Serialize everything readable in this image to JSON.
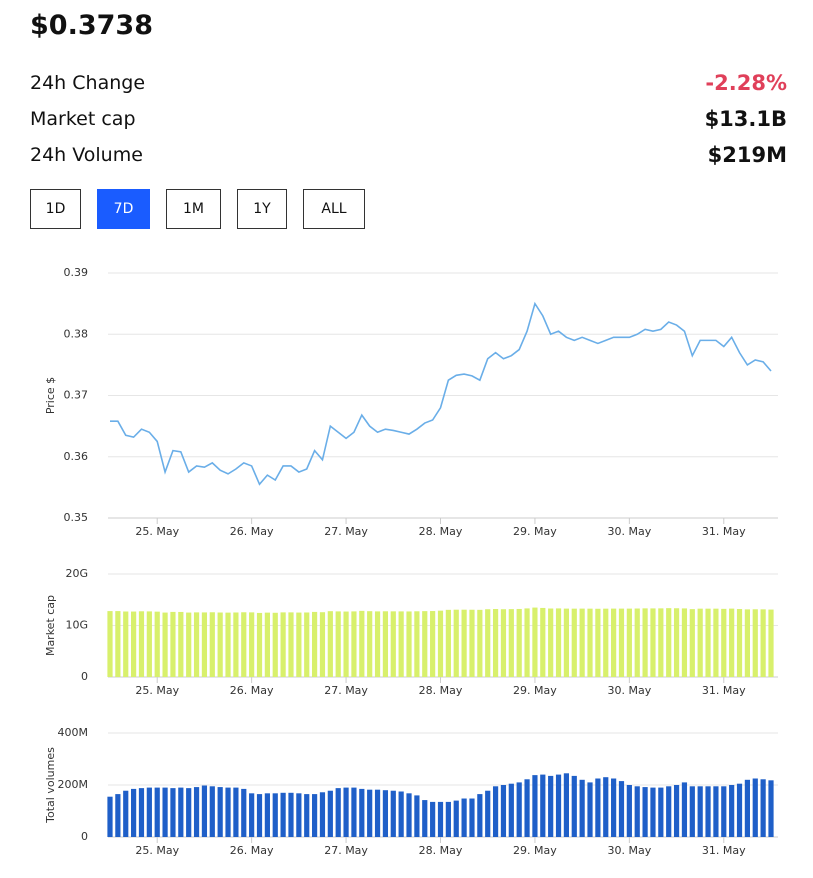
{
  "header": {
    "price": "$0.3738",
    "stats": [
      {
        "label": "24h Change",
        "value": "-2.28%",
        "color": "#e0405a"
      },
      {
        "label": "Market cap",
        "value": "$13.1B",
        "color": "#111111"
      },
      {
        "label": "24h Volume",
        "value": "$219M",
        "color": "#111111"
      }
    ],
    "ranges": [
      {
        "label": "1D"
      },
      {
        "label": "7D",
        "active": true
      },
      {
        "label": "1M"
      },
      {
        "label": "1Y"
      },
      {
        "label": "ALL"
      }
    ]
  },
  "chart_data": [
    {
      "type": "line",
      "y_label": "Price $",
      "color": "#6aaee8",
      "grid": true,
      "categories": [
        null,
        null,
        null,
        null,
        null,
        null,
        "25. May",
        null,
        null,
        null,
        null,
        null,
        null,
        null,
        null,
        null,
        null,
        null,
        "26. May",
        null,
        null,
        null,
        null,
        null,
        null,
        null,
        null,
        null,
        null,
        null,
        "27. May",
        null,
        null,
        null,
        null,
        null,
        null,
        null,
        null,
        null,
        null,
        null,
        "28. May",
        null,
        null,
        null,
        null,
        null,
        null,
        null,
        null,
        null,
        null,
        null,
        "29. May",
        null,
        null,
        null,
        null,
        null,
        null,
        null,
        null,
        null,
        null,
        null,
        "30. May",
        null,
        null,
        null,
        null,
        null,
        null,
        null,
        null,
        null,
        null,
        null,
        "31. May",
        null,
        null,
        null,
        null,
        null,
        null
      ],
      "values": [
        0.3658,
        0.3658,
        0.3635,
        0.3632,
        0.3645,
        0.364,
        0.3625,
        0.3575,
        0.361,
        0.3608,
        0.3575,
        0.3585,
        0.3583,
        0.359,
        0.3578,
        0.3572,
        0.358,
        0.359,
        0.3585,
        0.3555,
        0.357,
        0.3562,
        0.3585,
        0.3585,
        0.3575,
        0.358,
        0.361,
        0.3595,
        0.365,
        0.364,
        0.363,
        0.364,
        0.3668,
        0.365,
        0.364,
        0.3645,
        0.3643,
        0.364,
        0.3637,
        0.3645,
        0.3655,
        0.366,
        0.368,
        0.3725,
        0.3733,
        0.3735,
        0.3732,
        0.3725,
        0.376,
        0.377,
        0.376,
        0.3765,
        0.3775,
        0.3805,
        0.385,
        0.383,
        0.38,
        0.3805,
        0.3795,
        0.379,
        0.3795,
        0.379,
        0.3785,
        0.379,
        0.3795,
        0.3795,
        0.3795,
        0.38,
        0.3808,
        0.3805,
        0.3808,
        0.382,
        0.3815,
        0.3805,
        0.3765,
        0.379,
        0.379,
        0.379,
        0.378,
        0.3795,
        0.377,
        0.375,
        0.3758,
        0.3755,
        0.374
      ],
      "ylim": [
        0.35,
        0.39
      ],
      "yticks": [
        0.35,
        0.36,
        0.37,
        0.38,
        0.39
      ]
    },
    {
      "type": "bar",
      "y_label": "Market cap",
      "color": "#d8f06c",
      "grid": true,
      "categories": [
        null,
        null,
        null,
        null,
        null,
        null,
        "25. May",
        null,
        null,
        null,
        null,
        null,
        null,
        null,
        null,
        null,
        null,
        null,
        "26. May",
        null,
        null,
        null,
        null,
        null,
        null,
        null,
        null,
        null,
        null,
        null,
        "27. May",
        null,
        null,
        null,
        null,
        null,
        null,
        null,
        null,
        null,
        null,
        null,
        "28. May",
        null,
        null,
        null,
        null,
        null,
        null,
        null,
        null,
        null,
        null,
        null,
        "29. May",
        null,
        null,
        null,
        null,
        null,
        null,
        null,
        null,
        null,
        null,
        null,
        "30. May",
        null,
        null,
        null,
        null,
        null,
        null,
        null,
        null,
        null,
        null,
        null,
        "31. May",
        null,
        null,
        null,
        null,
        null,
        null
      ],
      "values": [
        12800000000,
        12800000000,
        12720000000,
        12710000000,
        12760000000,
        12740000000,
        12690000000,
        12510000000,
        12640000000,
        12630000000,
        12510000000,
        12550000000,
        12540000000,
        12570000000,
        12520000000,
        12500000000,
        12530000000,
        12570000000,
        12550000000,
        12440000000,
        12500000000,
        12470000000,
        12550000000,
        12550000000,
        12510000000,
        12530000000,
        12640000000,
        12580000000,
        12780000000,
        12740000000,
        12710000000,
        12740000000,
        12840000000,
        12780000000,
        12740000000,
        12760000000,
        12750000000,
        12740000000,
        12730000000,
        12760000000,
        12790000000,
        12810000000,
        12880000000,
        13040000000,
        13070000000,
        13070000000,
        13060000000,
        13040000000,
        13160000000,
        13200000000,
        13160000000,
        13180000000,
        13210000000,
        13320000000,
        13480000000,
        13410000000,
        13300000000,
        13320000000,
        13280000000,
        13270000000,
        13280000000,
        13270000000,
        13250000000,
        13270000000,
        13280000000,
        13280000000,
        13280000000,
        13300000000,
        13330000000,
        13320000000,
        13330000000,
        13370000000,
        13350000000,
        13320000000,
        13180000000,
        13270000000,
        13270000000,
        13270000000,
        13230000000,
        13280000000,
        13200000000,
        13130000000,
        13150000000,
        13140000000,
        13090000000
      ],
      "ylim": [
        0,
        20000000000
      ],
      "yticks": [
        0,
        {
          "value": 10000000000,
          "label": "10G"
        },
        {
          "value": 20000000000,
          "label": "20G"
        }
      ]
    },
    {
      "type": "bar",
      "y_label": "Total volumes",
      "color": "#1f5fc8",
      "grid": true,
      "categories": [
        null,
        null,
        null,
        null,
        null,
        null,
        "25. May",
        null,
        null,
        null,
        null,
        null,
        null,
        null,
        null,
        null,
        null,
        null,
        "26. May",
        null,
        null,
        null,
        null,
        null,
        null,
        null,
        null,
        null,
        null,
        null,
        "27. May",
        null,
        null,
        null,
        null,
        null,
        null,
        null,
        null,
        null,
        null,
        null,
        "28. May",
        null,
        null,
        null,
        null,
        null,
        null,
        null,
        null,
        null,
        null,
        null,
        "29. May",
        null,
        null,
        null,
        null,
        null,
        null,
        null,
        null,
        null,
        null,
        null,
        "30. May",
        null,
        null,
        null,
        null,
        null,
        null,
        null,
        null,
        null,
        null,
        null,
        "31. May",
        null,
        null,
        null,
        null,
        null,
        null
      ],
      "values": [
        155000000,
        165000000,
        178000000,
        185000000,
        188000000,
        190000000,
        190000000,
        190000000,
        188000000,
        190000000,
        188000000,
        192000000,
        198000000,
        195000000,
        192000000,
        190000000,
        190000000,
        185000000,
        168000000,
        165000000,
        168000000,
        168000000,
        170000000,
        170000000,
        168000000,
        165000000,
        165000000,
        172000000,
        178000000,
        188000000,
        190000000,
        190000000,
        185000000,
        182000000,
        182000000,
        180000000,
        178000000,
        175000000,
        168000000,
        160000000,
        142000000,
        135000000,
        135000000,
        135000000,
        140000000,
        148000000,
        148000000,
        165000000,
        178000000,
        195000000,
        200000000,
        205000000,
        210000000,
        222000000,
        238000000,
        240000000,
        235000000,
        240000000,
        245000000,
        235000000,
        220000000,
        210000000,
        225000000,
        230000000,
        225000000,
        215000000,
        200000000,
        195000000,
        192000000,
        190000000,
        190000000,
        195000000,
        200000000,
        210000000,
        195000000,
        195000000,
        195000000,
        195000000,
        195000000,
        200000000,
        205000000,
        220000000,
        225000000,
        222000000,
        218000000
      ],
      "ylim": [
        0,
        400000000
      ],
      "yticks": [
        0,
        {
          "value": 200000000,
          "label": "200M"
        },
        {
          "value": 400000000,
          "label": "400M"
        }
      ]
    }
  ]
}
